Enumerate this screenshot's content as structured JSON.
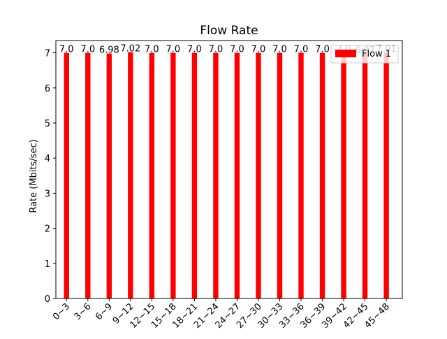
{
  "chart_data": {
    "type": "bar",
    "title": "Flow Rate",
    "xlabel": "",
    "ylabel": "Rate (Mbits/sec)",
    "categories": [
      "0~3",
      "3~6",
      "6~9",
      "9~12",
      "12~15",
      "15~18",
      "18~21",
      "21~24",
      "24~27",
      "27~30",
      "30~33",
      "33~36",
      "36~39",
      "39~42",
      "42~45",
      "45~48"
    ],
    "series": [
      {
        "name": "Flow 1",
        "color": "#ff0000",
        "values": [
          7.0,
          7.0,
          6.98,
          7.02,
          7.0,
          7.0,
          7.0,
          7.0,
          7.0,
          7.0,
          7.0,
          7.0,
          7.0,
          7.0,
          6.97,
          7.01
        ],
        "labels": [
          "7.0",
          "7.0",
          "6.98",
          "7.02",
          "7.0",
          "7.0",
          "7.0",
          "7.0",
          "7.0",
          "7.0",
          "7.0",
          "7.0",
          "7.0",
          "7.0",
          "6.97",
          "7.01"
        ]
      }
    ],
    "ylim": [
      0,
      7.35
    ],
    "yticks": [
      0,
      1,
      2,
      3,
      4,
      5,
      6,
      7
    ],
    "grid": false,
    "legend": "top-right"
  }
}
